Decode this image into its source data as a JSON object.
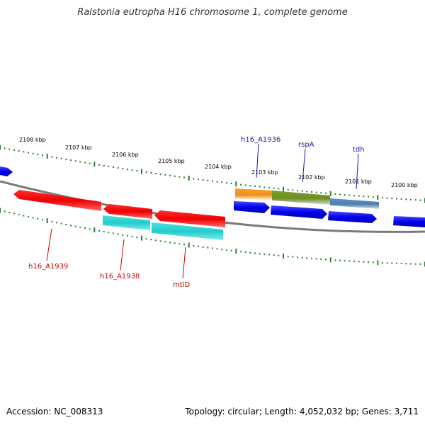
{
  "title": "Ralstonia eutropha H16 chromosome 1, complete genome",
  "footer": {
    "accession": "Accession: NC_008313",
    "summary": "Topology: circular; Length: 4,052,032 bp; Genes: 3,711"
  },
  "scale_labels": [
    "2108 kbp",
    "2107 kbp",
    "2106 kbp",
    "2105 kbp",
    "2104 kbp",
    "2103 kbp",
    "2102 kbp",
    "2101 kbp",
    "2100 kbp"
  ],
  "gene_labels": {
    "h16_A1936": "h16_A1936",
    "rspA": "rspA",
    "tdh": "tdh",
    "h16_A1939": "h16_A1939",
    "h16_A1938": "h16_A1938",
    "mtlD": "mtlD"
  },
  "colors": {
    "backbone": "#808080",
    "ticks": "#2e7d32",
    "forward_blue": "#0000ee",
    "reverse_red": "#ee0000",
    "cyan": "#22cccc",
    "orange": "#f0901a",
    "olive": "#6b8e23",
    "steel": "#4a7fb0",
    "label_blue": "#1a1aa0",
    "label_red": "#cc0000"
  }
}
